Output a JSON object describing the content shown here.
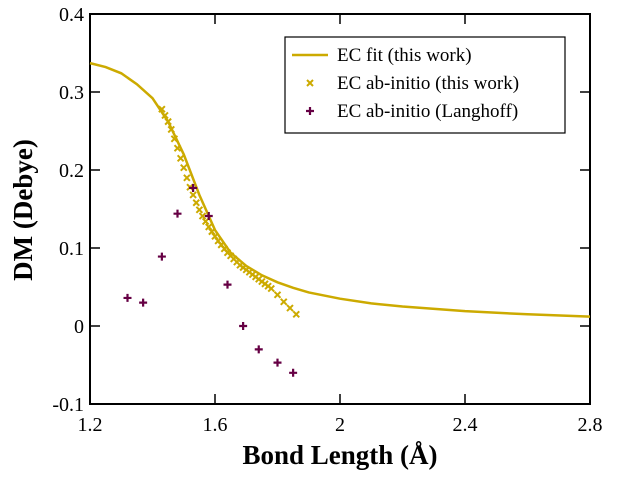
{
  "chart_data": {
    "type": "scatter",
    "xlabel": "Bond Length (Å)",
    "ylabel": "DM (Debye)",
    "xlim": [
      1.2,
      2.8
    ],
    "ylim": [
      -0.1,
      0.4
    ],
    "xticks": [
      1.2,
      1.6,
      2,
      2.4,
      2.8
    ],
    "yticks": [
      -0.1,
      0,
      0.1,
      0.2,
      0.3,
      0.4
    ],
    "legend": "upper right",
    "series": [
      {
        "name": "EC fit (this work)",
        "color": "#ccaa00",
        "marker": "line",
        "x": [
          1.2,
          1.25,
          1.3,
          1.35,
          1.4,
          1.45,
          1.5,
          1.55,
          1.6,
          1.65,
          1.7,
          1.75,
          1.8,
          1.85,
          1.9,
          2.0,
          2.1,
          2.2,
          2.4,
          2.6,
          2.8
        ],
        "values": [
          0.337,
          0.332,
          0.324,
          0.31,
          0.292,
          0.262,
          0.22,
          0.168,
          0.123,
          0.094,
          0.077,
          0.065,
          0.056,
          0.049,
          0.043,
          0.035,
          0.029,
          0.025,
          0.019,
          0.015,
          0.012
        ]
      },
      {
        "name": "EC ab-initio (this work)",
        "color": "#ccaa00",
        "marker": "x",
        "x": [
          1.43,
          1.44,
          1.45,
          1.46,
          1.47,
          1.48,
          1.49,
          1.5,
          1.51,
          1.52,
          1.53,
          1.54,
          1.55,
          1.56,
          1.57,
          1.58,
          1.59,
          1.6,
          1.61,
          1.62,
          1.63,
          1.64,
          1.65,
          1.66,
          1.67,
          1.68,
          1.69,
          1.7,
          1.71,
          1.72,
          1.73,
          1.74,
          1.75,
          1.76,
          1.77,
          1.78,
          1.8,
          1.82,
          1.84,
          1.86
        ],
        "values": [
          0.278,
          0.27,
          0.262,
          0.252,
          0.24,
          0.228,
          0.215,
          0.203,
          0.19,
          0.178,
          0.168,
          0.158,
          0.149,
          0.141,
          0.134,
          0.127,
          0.121,
          0.115,
          0.109,
          0.104,
          0.099,
          0.094,
          0.09,
          0.086,
          0.082,
          0.078,
          0.075,
          0.072,
          0.069,
          0.066,
          0.063,
          0.06,
          0.057,
          0.054,
          0.051,
          0.048,
          0.04,
          0.031,
          0.023,
          0.015
        ]
      },
      {
        "name": "EC ab-initio (Langhoff)",
        "color": "#660044",
        "marker": "plus",
        "x": [
          1.32,
          1.37,
          1.43,
          1.48,
          1.53,
          1.58,
          1.64,
          1.69,
          1.74,
          1.8,
          1.85
        ],
        "values": [
          0.036,
          0.03,
          0.089,
          0.144,
          0.177,
          0.141,
          0.053,
          0,
          -0.03,
          -0.047,
          -0.06
        ]
      }
    ]
  }
}
